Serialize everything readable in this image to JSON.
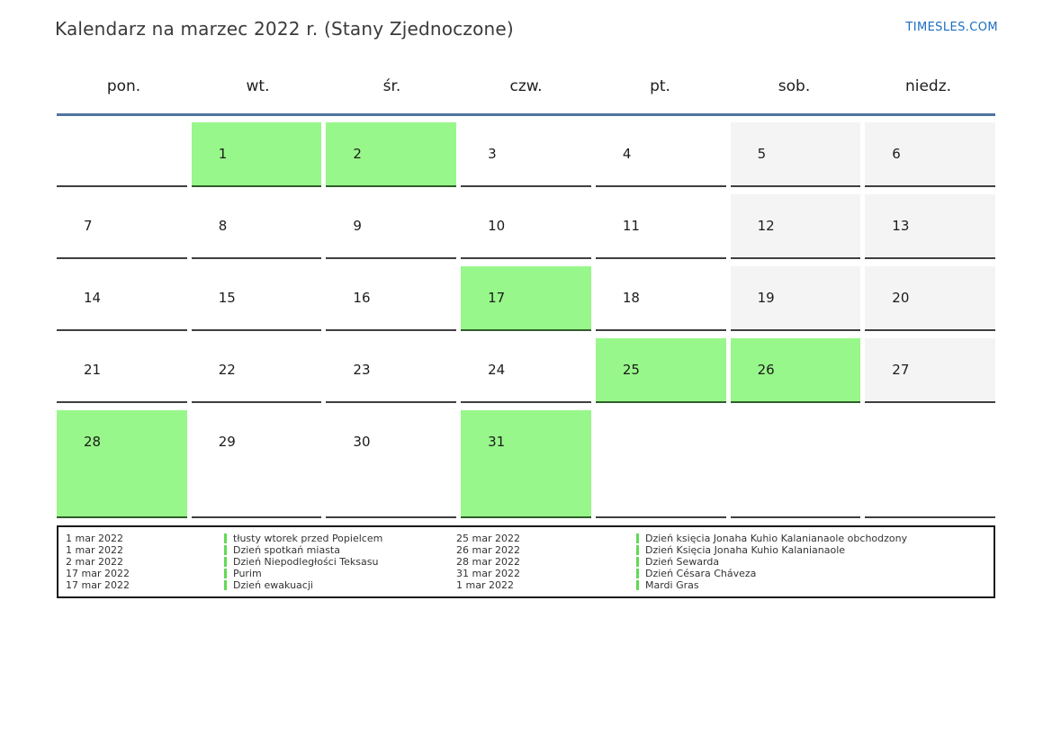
{
  "header": {
    "title": "Kalendarz na marzec 2022 r. (Stany Zjednoczone)",
    "site_link": "TIMESLES.COM"
  },
  "colors": {
    "accent_blue": "#1b6ec2",
    "separator_blue": "#4f74a0",
    "holiday_green": "#98f78a",
    "weekend_gray": "#f4f4f4",
    "legend_bar_green": "#62d956"
  },
  "calendar": {
    "weekdays": [
      "pon.",
      "wt.",
      "śr.",
      "czw.",
      "pt.",
      "sob.",
      "niedz."
    ],
    "weeks": [
      [
        {
          "day": "",
          "type": "empty"
        },
        {
          "day": "1",
          "type": "holiday"
        },
        {
          "day": "2",
          "type": "holiday"
        },
        {
          "day": "3",
          "type": "normal"
        },
        {
          "day": "4",
          "type": "normal"
        },
        {
          "day": "5",
          "type": "weekend"
        },
        {
          "day": "6",
          "type": "weekend"
        }
      ],
      [
        {
          "day": "7",
          "type": "normal"
        },
        {
          "day": "8",
          "type": "normal"
        },
        {
          "day": "9",
          "type": "normal"
        },
        {
          "day": "10",
          "type": "normal"
        },
        {
          "day": "11",
          "type": "normal"
        },
        {
          "day": "12",
          "type": "weekend"
        },
        {
          "day": "13",
          "type": "weekend"
        }
      ],
      [
        {
          "day": "14",
          "type": "normal"
        },
        {
          "day": "15",
          "type": "normal"
        },
        {
          "day": "16",
          "type": "normal"
        },
        {
          "day": "17",
          "type": "holiday"
        },
        {
          "day": "18",
          "type": "normal"
        },
        {
          "day": "19",
          "type": "weekend"
        },
        {
          "day": "20",
          "type": "weekend"
        }
      ],
      [
        {
          "day": "21",
          "type": "normal"
        },
        {
          "day": "22",
          "type": "normal"
        },
        {
          "day": "23",
          "type": "normal"
        },
        {
          "day": "24",
          "type": "normal"
        },
        {
          "day": "25",
          "type": "holiday"
        },
        {
          "day": "26",
          "type": "holiday"
        },
        {
          "day": "27",
          "type": "weekend"
        }
      ],
      [
        {
          "day": "28",
          "type": "holiday"
        },
        {
          "day": "29",
          "type": "normal"
        },
        {
          "day": "30",
          "type": "normal"
        },
        {
          "day": "31",
          "type": "holiday"
        },
        {
          "day": "",
          "type": "empty"
        },
        {
          "day": "",
          "type": "empty"
        },
        {
          "day": "",
          "type": "empty"
        }
      ]
    ]
  },
  "legend": {
    "columns": [
      {
        "entries": [
          {
            "date": "1 mar 2022",
            "label": "tłusty wtorek przed Popielcem"
          },
          {
            "date": "1 mar 2022",
            "label": "Dzień spotkań miasta"
          },
          {
            "date": "2 mar 2022",
            "label": "Dzień Niepodległości Teksasu"
          },
          {
            "date": "17 mar 2022",
            "label": "Purim"
          },
          {
            "date": "17 mar 2022",
            "label": "Dzień ewakuacji"
          }
        ]
      },
      {
        "entries": [
          {
            "date": "25 mar 2022",
            "label": "Dzień księcia Jonaha Kuhio Kalanianaole obchodzony"
          },
          {
            "date": "26 mar 2022",
            "label": "Dzień Księcia Jonaha Kuhio Kalanianaole"
          },
          {
            "date": "28 mar 2022",
            "label": "Dzień Sewarda"
          },
          {
            "date": "31 mar 2022",
            "label": "Dzień Césara Cháveza"
          },
          {
            "date": "1 mar 2022",
            "label": "Mardi Gras"
          }
        ]
      }
    ]
  }
}
